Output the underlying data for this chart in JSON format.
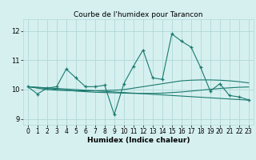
{
  "title": "Courbe de l'humidex pour Tarancon",
  "xlabel": "Humidex (Indice chaleur)",
  "background_color": "#d6f0f0",
  "line_color": "#1a7a6e",
  "x_data": [
    0,
    1,
    2,
    3,
    4,
    5,
    6,
    7,
    8,
    9,
    10,
    11,
    12,
    13,
    14,
    15,
    16,
    17,
    18,
    19,
    20,
    21,
    22,
    23
  ],
  "y_main": [
    10.1,
    9.85,
    10.05,
    10.1,
    10.7,
    10.4,
    10.1,
    10.1,
    10.15,
    9.15,
    10.2,
    10.8,
    11.35,
    10.4,
    10.35,
    11.9,
    11.65,
    11.45,
    10.75,
    9.95,
    10.2,
    9.8,
    9.75,
    9.65
  ],
  "trend1": [
    10.1,
    10.05,
    10.0,
    9.98,
    9.97,
    9.96,
    9.96,
    9.96,
    9.97,
    9.98,
    10.0,
    10.05,
    10.1,
    10.15,
    10.2,
    10.25,
    10.3,
    10.32,
    10.33,
    10.33,
    10.32,
    10.3,
    10.27,
    10.23
  ],
  "trend2": [
    10.1,
    10.08,
    10.06,
    10.04,
    10.02,
    10.0,
    9.98,
    9.96,
    9.94,
    9.92,
    9.9,
    9.88,
    9.86,
    9.84,
    9.82,
    9.8,
    9.78,
    9.76,
    9.74,
    9.72,
    9.7,
    9.68,
    9.66,
    9.64
  ],
  "trend3": [
    10.1,
    10.07,
    10.04,
    10.01,
    9.98,
    9.95,
    9.93,
    9.91,
    9.9,
    9.89,
    9.88,
    9.87,
    9.87,
    9.87,
    9.88,
    9.9,
    9.92,
    9.95,
    9.98,
    10.01,
    10.04,
    10.06,
    10.08,
    10.09
  ],
  "ylim": [
    8.8,
    12.4
  ],
  "xlim": [
    -0.5,
    23.5
  ],
  "yticks": [
    9,
    10,
    11,
    12
  ],
  "xticks": [
    0,
    1,
    2,
    3,
    4,
    5,
    6,
    7,
    8,
    9,
    10,
    11,
    12,
    13,
    14,
    15,
    16,
    17,
    18,
    19,
    20,
    21,
    22,
    23
  ],
  "grid_color": "#b0d8d8",
  "title_fontsize": 6.5,
  "xlabel_fontsize": 6.5,
  "tick_fontsize": 5.5
}
